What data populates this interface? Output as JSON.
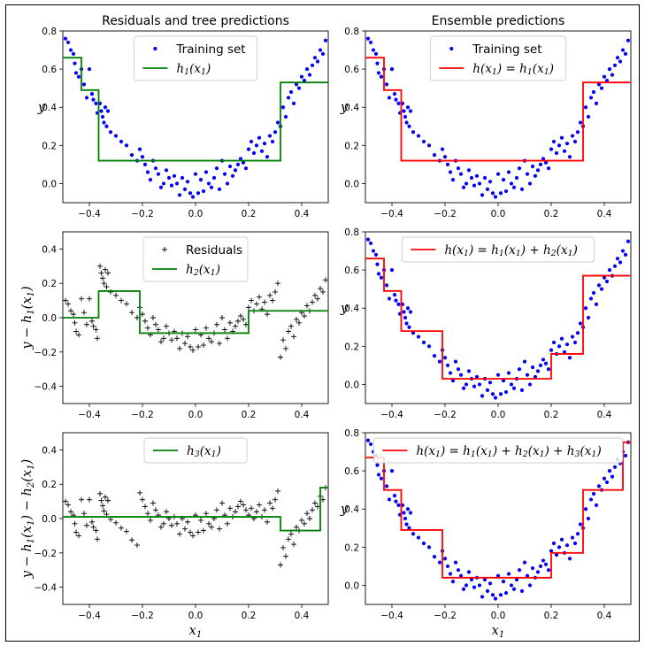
{
  "figure": {
    "colors": {
      "train": "#0000ff",
      "residual": "#000000",
      "tree": "#008000",
      "ensemble": "#ff0000"
    }
  },
  "chart_data": [
    {
      "id": "p11",
      "type": "scatter",
      "title": "Residuals and tree predictions",
      "ylabel": "y",
      "xlabel": "",
      "xlim": [
        -0.5,
        0.5
      ],
      "ylim": [
        -0.1,
        0.8
      ],
      "xticks": [
        "−0.4",
        "−0.2",
        "0.0",
        "0.2",
        "0.4"
      ],
      "yticks": [
        {
          "v": 0.0,
          "label": "0.0"
        },
        {
          "v": 0.2,
          "label": "0.2"
        },
        {
          "v": 0.4,
          "label": "0.4"
        },
        {
          "v": 0.6,
          "label": "0.6"
        },
        {
          "v": 0.8,
          "label": "0.8"
        }
      ],
      "legend": {
        "position": "top-center",
        "entries": [
          "Training set",
          "h1(x1)"
        ]
      },
      "scatter": {
        "name": "Training set",
        "marker": "dot",
        "color": "#0000ff"
      },
      "step": {
        "name": "h1(x1)",
        "color": "#008000",
        "breaks": [
          -0.5,
          -0.43,
          -0.365,
          0.32,
          0.5
        ],
        "levels": [
          0.66,
          0.49,
          0.12,
          0.53
        ]
      }
    },
    {
      "id": "p12",
      "type": "scatter",
      "title": "Ensemble predictions",
      "ylabel": "y",
      "xlabel": "",
      "xlim": [
        -0.5,
        0.5
      ],
      "ylim": [
        -0.1,
        0.8
      ],
      "xticks": [
        "−0.4",
        "−0.2",
        "0.0",
        "0.2",
        "0.4"
      ],
      "yticks": [
        {
          "v": 0.0,
          "label": "0.0"
        },
        {
          "v": 0.2,
          "label": "0.2"
        },
        {
          "v": 0.4,
          "label": "0.4"
        },
        {
          "v": 0.6,
          "label": "0.6"
        },
        {
          "v": 0.8,
          "label": "0.8"
        }
      ],
      "legend": {
        "position": "top-center",
        "entries": [
          "Training set",
          "h(x1) = h1(x1)"
        ]
      },
      "scatter": {
        "name": "Training set",
        "marker": "dot",
        "color": "#0000ff"
      },
      "step": {
        "name": "h(x1) = h1(x1)",
        "color": "#ff0000",
        "breaks": [
          -0.5,
          -0.43,
          -0.365,
          0.32,
          0.5
        ],
        "levels": [
          0.66,
          0.49,
          0.12,
          0.53
        ]
      }
    },
    {
      "id": "p21",
      "type": "scatter",
      "title": "",
      "ylabel": "y − h1(x1)",
      "xlabel": "",
      "xlim": [
        -0.5,
        0.5
      ],
      "ylim": [
        -0.5,
        0.5
      ],
      "xticks": [
        "−0.4",
        "−0.2",
        "0.0",
        "0.2",
        "0.4"
      ],
      "yticks": [
        {
          "v": -0.4,
          "label": "−0.4"
        },
        {
          "v": -0.2,
          "label": "−0.2"
        },
        {
          "v": 0.0,
          "label": "0.0"
        },
        {
          "v": 0.2,
          "label": "0.2"
        },
        {
          "v": 0.4,
          "label": "0.4"
        }
      ],
      "legend": {
        "position": "top-center",
        "entries": [
          "Residuals",
          "h2(x1)"
        ]
      },
      "scatter": {
        "name": "Residuals",
        "marker": "plus",
        "color": "#000000"
      },
      "step": {
        "name": "h2(x1)",
        "color": "#008000",
        "breaks": [
          -0.5,
          -0.365,
          -0.21,
          0.2,
          0.5
        ],
        "levels": [
          0.0,
          0.155,
          -0.09,
          0.04
        ]
      }
    },
    {
      "id": "p22",
      "type": "scatter",
      "title": "",
      "ylabel": "y",
      "xlabel": "",
      "xlim": [
        -0.5,
        0.5
      ],
      "ylim": [
        -0.1,
        0.8
      ],
      "xticks": [
        "−0.4",
        "−0.2",
        "0.0",
        "0.2",
        "0.4"
      ],
      "yticks": [
        {
          "v": 0.0,
          "label": "0.0"
        },
        {
          "v": 0.2,
          "label": "0.2"
        },
        {
          "v": 0.4,
          "label": "0.4"
        },
        {
          "v": 0.6,
          "label": "0.6"
        },
        {
          "v": 0.8,
          "label": "0.8"
        }
      ],
      "legend": {
        "position": "top-center",
        "entries": [
          "h(x1) = h1(x1) + h2(x1)"
        ]
      },
      "scatter": {
        "name": "",
        "marker": "dot",
        "color": "#0000ff"
      },
      "step": {
        "name": "h(x1) = h1(x1) + h2(x1)",
        "color": "#ff0000",
        "breaks": [
          -0.5,
          -0.43,
          -0.365,
          -0.21,
          0.2,
          0.32,
          0.5
        ],
        "levels": [
          0.66,
          0.49,
          0.28,
          0.03,
          0.16,
          0.57
        ]
      }
    },
    {
      "id": "p31",
      "type": "scatter",
      "title": "",
      "ylabel": "y − h1(x1) − h2(x1)",
      "xlabel": "x1",
      "xlim": [
        -0.5,
        0.5
      ],
      "ylim": [
        -0.5,
        0.5
      ],
      "xticks": [
        "−0.4",
        "−0.2",
        "0.0",
        "0.2",
        "0.4"
      ],
      "yticks": [
        {
          "v": -0.4,
          "label": "−0.4"
        },
        {
          "v": -0.2,
          "label": "−0.2"
        },
        {
          "v": 0.0,
          "label": "0.0"
        },
        {
          "v": 0.2,
          "label": "0.2"
        },
        {
          "v": 0.4,
          "label": "0.4"
        }
      ],
      "legend": {
        "position": "top-center",
        "entries": [
          "h3(x1)"
        ]
      },
      "scatter": {
        "name": "",
        "marker": "plus",
        "color": "#000000"
      },
      "step": {
        "name": "h3(x1)",
        "color": "#008000",
        "breaks": [
          -0.5,
          0.32,
          0.47,
          0.5
        ],
        "levels": [
          0.01,
          -0.07,
          0.18
        ]
      }
    },
    {
      "id": "p32",
      "type": "scatter",
      "title": "",
      "ylabel": "y",
      "xlabel": "x1",
      "xlim": [
        -0.5,
        0.5
      ],
      "ylim": [
        -0.1,
        0.8
      ],
      "xticks": [
        "−0.4",
        "−0.2",
        "0.0",
        "0.2",
        "0.4"
      ],
      "yticks": [
        {
          "v": 0.0,
          "label": "0.0"
        },
        {
          "v": 0.2,
          "label": "0.2"
        },
        {
          "v": 0.4,
          "label": "0.4"
        },
        {
          "v": 0.6,
          "label": "0.6"
        },
        {
          "v": 0.8,
          "label": "0.8"
        }
      ],
      "legend": {
        "position": "top-center",
        "entries": [
          "h(x1) = h1(x1) + h2(x1) + h3(x1)"
        ]
      },
      "scatter": {
        "name": "",
        "marker": "dot",
        "color": "#0000ff"
      },
      "step": {
        "name": "h(x1) = h1(x1) + h2(x1) + h3(x1)",
        "color": "#ff0000",
        "breaks": [
          -0.5,
          -0.43,
          -0.365,
          -0.21,
          0.2,
          0.32,
          0.47,
          0.5
        ],
        "levels": [
          0.67,
          0.5,
          0.29,
          0.04,
          0.17,
          0.5,
          0.75
        ]
      }
    }
  ],
  "training_points": {
    "x": [
      -0.49,
      -0.48,
      -0.47,
      -0.46,
      -0.455,
      -0.45,
      -0.44,
      -0.43,
      -0.42,
      -0.41,
      -0.4,
      -0.39,
      -0.385,
      -0.375,
      -0.37,
      -0.36,
      -0.355,
      -0.35,
      -0.345,
      -0.34,
      -0.335,
      -0.33,
      -0.32,
      -0.3,
      -0.28,
      -0.26,
      -0.24,
      -0.22,
      -0.21,
      -0.2,
      -0.19,
      -0.18,
      -0.17,
      -0.16,
      -0.15,
      -0.14,
      -0.13,
      -0.12,
      -0.11,
      -0.1,
      -0.09,
      -0.08,
      -0.07,
      -0.06,
      -0.05,
      -0.04,
      -0.03,
      -0.02,
      -0.01,
      0.0,
      0.01,
      0.02,
      0.03,
      0.04,
      0.05,
      0.06,
      0.07,
      0.08,
      0.09,
      0.1,
      0.11,
      0.12,
      0.13,
      0.14,
      0.15,
      0.16,
      0.17,
      0.18,
      0.19,
      0.2,
      0.21,
      0.22,
      0.23,
      0.24,
      0.25,
      0.26,
      0.27,
      0.28,
      0.29,
      0.3,
      0.31,
      0.32,
      0.33,
      0.34,
      0.35,
      0.36,
      0.37,
      0.38,
      0.39,
      0.4,
      0.41,
      0.42,
      0.43,
      0.44,
      0.45,
      0.46,
      0.47,
      0.48,
      0.49
    ],
    "y": [
      0.76,
      0.74,
      0.7,
      0.68,
      0.63,
      0.58,
      0.56,
      0.6,
      0.52,
      0.45,
      0.6,
      0.47,
      0.44,
      0.42,
      0.37,
      0.42,
      0.38,
      0.35,
      0.32,
      0.4,
      0.3,
      0.38,
      0.27,
      0.25,
      0.22,
      0.2,
      0.15,
      0.12,
      0.18,
      0.14,
      0.1,
      0.06,
      0.02,
      0.12,
      0.08,
      0.05,
      -0.02,
      0.0,
      0.07,
      0.03,
      -0.01,
      0.04,
      0.0,
      -0.06,
      0.03,
      -0.03,
      0.01,
      -0.05,
      -0.07,
      0.05,
      -0.05,
      0.02,
      -0.04,
      0.06,
      0.0,
      -0.02,
      0.03,
      0.08,
      -0.03,
      0.12,
      0.05,
      0.0,
      0.09,
      0.04,
      0.07,
      0.1,
      0.13,
      0.11,
      0.08,
      0.18,
      0.22,
      0.16,
      0.2,
      0.24,
      0.17,
      0.21,
      0.14,
      0.25,
      0.22,
      0.27,
      0.32,
      0.3,
      0.4,
      0.35,
      0.45,
      0.48,
      0.42,
      0.52,
      0.5,
      0.56,
      0.54,
      0.6,
      0.57,
      0.62,
      0.66,
      0.64,
      0.7,
      0.68,
      0.75
    ]
  }
}
